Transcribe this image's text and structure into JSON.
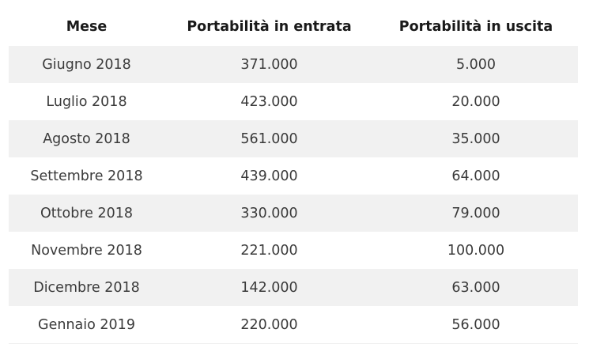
{
  "table": {
    "headers": [
      "Mese",
      "Portabilità in entrata",
      "Portabilità in uscita"
    ],
    "rows": [
      [
        "Giugno 2018",
        "371.000",
        "5.000"
      ],
      [
        "Luglio 2018",
        "423.000",
        "20.000"
      ],
      [
        "Agosto 2018",
        "561.000",
        "35.000"
      ],
      [
        "Settembre 2018",
        "439.000",
        "64.000"
      ],
      [
        "Ottobre 2018",
        "330.000",
        "79.000"
      ],
      [
        "Novembre 2018",
        "221.000",
        "100.000"
      ],
      [
        "Dicembre 2018",
        "142.000",
        "63.000"
      ],
      [
        "Gennaio 2019",
        "220.000",
        "56.000"
      ]
    ]
  },
  "colors": {
    "row_stripe": "#f1f1f1",
    "header_text": "#1a1a1a",
    "cell_text": "#3a3a3a"
  }
}
